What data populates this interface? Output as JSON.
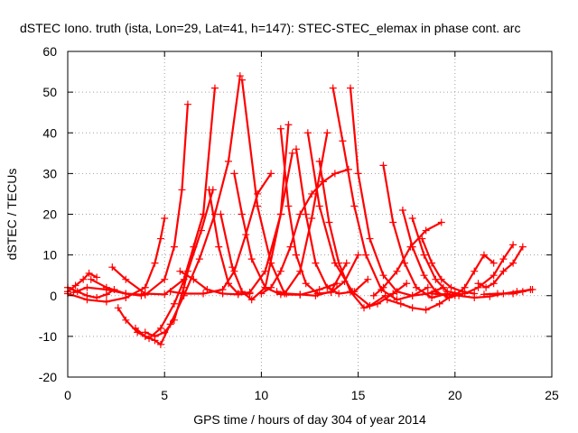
{
  "chart_data": {
    "type": "scatter",
    "title": "dSTEC Iono. truth (ista, Lon=29, Lat=41, h=147): STEC-STEC_elemax in phase cont. arc",
    "xlabel": "GPS time / hours of day 304 of year 2014",
    "ylabel": "dSTEC  / TECUs",
    "xlim": [
      0,
      25
    ],
    "ylim": [
      -20,
      60
    ],
    "xticks": [
      0,
      5,
      10,
      15,
      20,
      25
    ],
    "yticks": [
      -20,
      -10,
      0,
      10,
      20,
      30,
      40,
      50,
      60
    ],
    "grid": true,
    "marker": "plus",
    "color": "#ff0000",
    "series": [
      {
        "x": [
          0.0,
          0.4,
          0.8,
          1.1,
          1.5
        ],
        "y": [
          1.0,
          2.5,
          4.0,
          5.5,
          4.5
        ]
      },
      {
        "x": [
          0.0,
          0.5,
          1.0,
          1.5,
          2.0,
          2.4
        ],
        "y": [
          2.0,
          1.0,
          0.0,
          -0.5,
          0.3,
          1.5
        ]
      },
      {
        "x": [
          0.0,
          1.0,
          2.0,
          3.0,
          4.0,
          4.5,
          4.8,
          5.0
        ],
        "y": [
          0.5,
          -1.0,
          -1.5,
          -0.5,
          2.0,
          8.0,
          14.0,
          19.0
        ]
      },
      {
        "x": [
          0.3,
          1.0,
          2.0,
          3.0,
          3.8
        ],
        "y": [
          0.8,
          2.0,
          1.5,
          0.5,
          0.0
        ]
      },
      {
        "x": [
          1.2,
          2.0,
          3.0,
          4.0,
          5.0,
          5.5,
          5.9,
          6.2
        ],
        "y": [
          4.0,
          2.0,
          0.5,
          0.2,
          4.0,
          12.0,
          26.0,
          47.0
        ]
      },
      {
        "x": [
          2.3,
          3.0,
          4.0,
          5.0,
          6.0,
          7.0,
          7.6
        ],
        "y": [
          7.0,
          4.0,
          0.5,
          0.3,
          4.0,
          20.0,
          51.0
        ]
      },
      {
        "x": [
          2.6,
          3.0,
          3.6,
          4.2,
          4.8,
          5.5,
          6.2,
          6.9,
          7.5
        ],
        "y": [
          -3.0,
          -6.0,
          -9.0,
          -10.5,
          -8.0,
          -2.0,
          6.0,
          16.0,
          26.0
        ]
      },
      {
        "x": [
          3.5,
          4.0,
          4.5,
          4.8,
          5.3,
          6.0,
          6.8,
          7.6,
          8.3,
          8.9
        ],
        "y": [
          -8.0,
          -10.0,
          -11.0,
          -12.0,
          -7.0,
          0.0,
          9.0,
          20.0,
          33.0,
          54.0
        ]
      },
      {
        "x": [
          4.0,
          4.5,
          5.0,
          5.5,
          6.0,
          6.5,
          7.0
        ],
        "y": [
          -9.0,
          -10.0,
          -9.0,
          -6.0,
          2.0,
          12.0,
          20.0
        ]
      },
      {
        "x": [
          5.8,
          6.5,
          7.2,
          8.0,
          8.8,
          9.4
        ],
        "y": [
          6.0,
          4.0,
          1.5,
          0.5,
          0.3,
          0.5
        ]
      },
      {
        "x": [
          5.3,
          6.0,
          7.0,
          8.0,
          8.6,
          9.2,
          9.8,
          10.5
        ],
        "y": [
          1.0,
          0.5,
          0.5,
          1.5,
          6.0,
          15.0,
          25.0,
          30.0
        ]
      },
      {
        "x": [
          7.3,
          7.8,
          8.3,
          8.8,
          9.4,
          10.2,
          11.0,
          11.6
        ],
        "y": [
          26.0,
          12.0,
          3.0,
          0.5,
          0.8,
          6.0,
          20.0,
          35.0
        ]
      },
      {
        "x": [
          7.9,
          8.5,
          9.0,
          9.5,
          10.2,
          11.0,
          11.4
        ],
        "y": [
          20.0,
          7.0,
          1.0,
          -1.0,
          2.0,
          20.0,
          42.0
        ]
      },
      {
        "x": [
          8.6,
          9.0,
          9.5,
          10.2,
          11.0,
          12.0,
          13.0,
          13.9
        ],
        "y": [
          30.0,
          20.0,
          9.0,
          2.0,
          0.3,
          0.2,
          1.5,
          3.0
        ]
      },
      {
        "x": [
          9.0,
          9.8,
          10.5,
          11.2,
          12.0,
          12.6,
          13.4
        ],
        "y": [
          53.0,
          22.0,
          8.0,
          0.5,
          6.0,
          19.0,
          40.0
        ]
      },
      {
        "x": [
          10.0,
          10.5,
          11.0,
          11.5,
          12.0,
          12.6,
          13.2,
          13.8,
          14.5
        ],
        "y": [
          0.5,
          2.0,
          6.0,
          12.0,
          20.0,
          25.0,
          28.0,
          30.0,
          31.0
        ]
      },
      {
        "x": [
          10.8,
          11.3,
          12.0,
          12.8,
          13.6,
          14.4
        ],
        "y": [
          1.0,
          0.5,
          0.3,
          0.0,
          1.0,
          8.0
        ]
      },
      {
        "x": [
          11.0,
          11.4,
          11.8,
          12.3,
          12.9,
          13.6,
          14.3,
          15.0
        ],
        "y": [
          41.0,
          22.0,
          10.0,
          3.0,
          0.5,
          0.8,
          3.5,
          10.0
        ]
      },
      {
        "x": [
          11.8,
          12.3,
          12.8,
          13.4,
          14.0,
          14.8,
          15.5
        ],
        "y": [
          36.0,
          20.0,
          8.0,
          2.0,
          0.5,
          1.0,
          4.0
        ]
      },
      {
        "x": [
          12.4,
          13.0,
          13.8,
          14.7,
          15.6,
          16.4
        ],
        "y": [
          40.0,
          22.0,
          8.0,
          1.0,
          -2.5,
          0.0
        ]
      },
      {
        "x": [
          13.0,
          13.5,
          14.0,
          14.6,
          15.3,
          16.0,
          16.8,
          17.5
        ],
        "y": [
          33.0,
          18.0,
          8.0,
          1.0,
          -3.0,
          -2.0,
          0.5,
          3.0
        ]
      },
      {
        "x": [
          13.7,
          14.2,
          14.8,
          15.4,
          16.2,
          17.0,
          17.8,
          18.6
        ],
        "y": [
          51.0,
          38.0,
          22.0,
          10.0,
          1.5,
          -1.0,
          0.0,
          2.0
        ]
      },
      {
        "x": [
          14.6,
          15.0,
          15.6,
          16.3,
          17.0,
          17.8,
          18.6,
          19.4
        ],
        "y": [
          51.0,
          30.0,
          14.0,
          5.0,
          1.0,
          0.0,
          0.5,
          2.0
        ]
      },
      {
        "x": [
          16.3,
          16.8,
          17.4,
          18.0,
          18.8,
          19.6
        ],
        "y": [
          32.0,
          18.0,
          8.0,
          2.0,
          -0.5,
          0.5
        ]
      },
      {
        "x": [
          15.8,
          16.3,
          17.0,
          17.7,
          18.5,
          19.3
        ],
        "y": [
          0.0,
          2.0,
          6.0,
          12.0,
          16.0,
          18.0
        ]
      },
      {
        "x": [
          17.3,
          17.8,
          18.4,
          19.0,
          19.7,
          20.4
        ],
        "y": [
          21.0,
          12.0,
          5.0,
          1.0,
          -0.5,
          0.5
        ]
      },
      {
        "x": [
          17.8,
          18.4,
          19.0,
          19.6,
          20.2
        ],
        "y": [
          19.0,
          10.0,
          4.0,
          1.0,
          0.5
        ]
      },
      {
        "x": [
          18.3,
          18.8,
          19.3,
          19.8,
          20.4,
          21.0
        ],
        "y": [
          14.0,
          8.0,
          4.0,
          2.0,
          1.0,
          0.5
        ]
      },
      {
        "x": [
          16.5,
          17.2,
          17.8,
          18.5,
          19.2,
          20.0
        ],
        "y": [
          -1.0,
          -2.0,
          -3.0,
          -3.5,
          -2.0,
          0.5
        ]
      },
      {
        "x": [
          18.8,
          19.5,
          20.2,
          21.0,
          21.8,
          22.5,
          23.2,
          24.0
        ],
        "y": [
          0.5,
          0.3,
          0.0,
          -0.5,
          -0.2,
          0.5,
          1.0,
          1.5
        ]
      },
      {
        "x": [
          20.0,
          20.5,
          21.0,
          21.5,
          22.0
        ],
        "y": [
          0.0,
          2.0,
          6.0,
          10.0,
          8.0
        ]
      },
      {
        "x": [
          20.5,
          21.2,
          22.0,
          22.5,
          23.0
        ],
        "y": [
          0.5,
          2.0,
          5.0,
          9.0,
          12.5
        ]
      },
      {
        "x": [
          21.2,
          21.6,
          22.0,
          22.5,
          23.0,
          23.5
        ],
        "y": [
          3.0,
          2.0,
          3.0,
          6.0,
          8.0,
          12.0
        ]
      },
      {
        "x": [
          21.5,
          22.2,
          23.0,
          23.5,
          23.9
        ],
        "y": [
          0.3,
          0.5,
          0.5,
          1.0,
          1.5
        ]
      }
    ]
  }
}
